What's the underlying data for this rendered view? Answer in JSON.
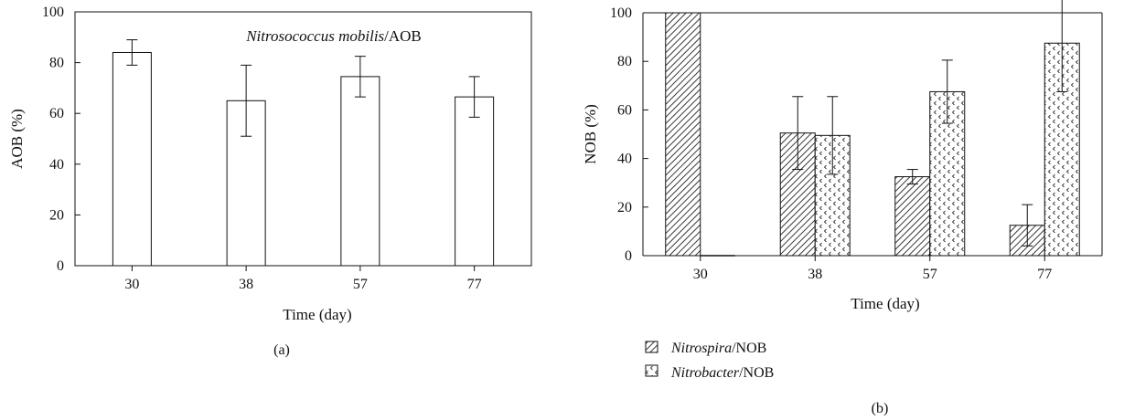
{
  "chart_data": [
    {
      "type": "bar",
      "panel_label": "(a)",
      "annotation": {
        "italic": "Nitrosococcus mobilis",
        "plain": "/AOB"
      },
      "xlabel": "Time (day)",
      "ylabel": "AOB (%)",
      "ylim": [
        0,
        100
      ],
      "yticks": [
        0,
        20,
        40,
        60,
        80,
        100
      ],
      "categories": [
        "30",
        "38",
        "57",
        "77"
      ],
      "series": [
        {
          "values": [
            84,
            65,
            74.5,
            66.5
          ],
          "errors": [
            5,
            14,
            8,
            8
          ]
        }
      ],
      "grid": false
    },
    {
      "type": "bar",
      "panel_label": "(b)",
      "xlabel": "Time (day)",
      "ylabel": "NOB (%)",
      "ylim": [
        0,
        100
      ],
      "yticks": [
        0,
        20,
        40,
        60,
        80,
        100
      ],
      "categories": [
        "30",
        "38",
        "57",
        "77"
      ],
      "series": [
        {
          "name": "Nitrospira",
          "suffix": "/NOB",
          "values": [
            100,
            50.5,
            32.5,
            12.5
          ],
          "errors": [
            0,
            15,
            3,
            8.5
          ],
          "pattern": "diagonal-hatch"
        },
        {
          "name": "Nitrobacter",
          "suffix": "/NOB",
          "values": [
            0,
            49.5,
            67.5,
            87.5
          ],
          "errors": [
            0,
            16,
            13,
            20
          ],
          "pattern": "dotted-chevron"
        }
      ],
      "legend_position": "below",
      "grid": false
    }
  ]
}
